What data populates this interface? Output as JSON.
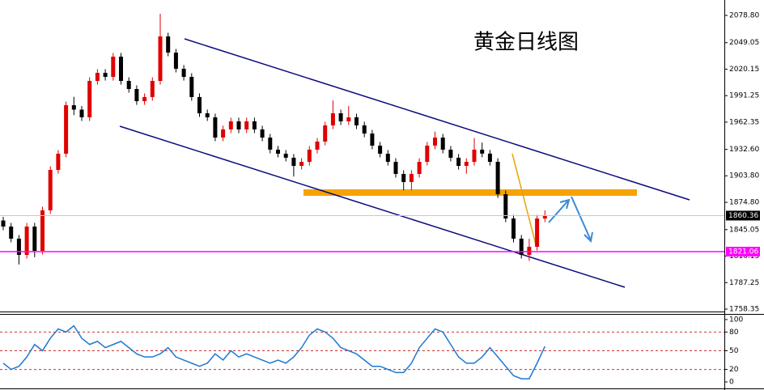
{
  "chart_data": [
    {
      "type": "candlestick",
      "title": "黄金日线图",
      "open": [
        1855.0,
        1848.4,
        1835.2,
        1817.5,
        1848.4,
        1821.9,
        1866.1,
        1910.2,
        1927.9,
        1980.8,
        1976.0,
        1967.6,
        2007.3,
        2016.1,
        2011.7,
        2033.8,
        2007.3,
        1998.5,
        1985.2,
        1989.7,
        2007.3,
        2055.9,
        2038.2,
        2020.6,
        2011.7,
        1989.7,
        1972.0,
        1967.6,
        1945.5,
        1954.4,
        1963.2,
        1954.4,
        1963.2,
        1954.4,
        1945.5,
        1932.3,
        1927.9,
        1923.5,
        1914.6,
        1919.0,
        1932.3,
        1941.1,
        1958.8,
        1972.0,
        1963.2,
        1967.6,
        1958.8,
        1949.9,
        1936.7,
        1927.9,
        1919.0,
        1905.8,
        1897.0,
        1905.8,
        1919.0,
        1936.7,
        1945.5,
        1932.3,
        1923.5,
        1914.6,
        1919.0,
        1932.3,
        1928.0,
        1919.0,
        1883.7,
        1857.2,
        1835.2,
        1817.5,
        1826.3,
        1857.2
      ],
      "high": [
        1859.0,
        1852.4,
        1839.2,
        1852.4,
        1852.4,
        1870.1,
        1914.2,
        1931.9,
        1984.8,
        1990.0,
        1980.0,
        2011.3,
        2020.1,
        2020.1,
        2037.8,
        2037.8,
        2011.3,
        2002.5,
        1993.7,
        2011.3,
        2080.6,
        2059.9,
        2042.2,
        2024.6,
        2015.7,
        1993.7,
        1976.0,
        1971.6,
        1958.4,
        1967.2,
        1967.2,
        1967.2,
        1967.2,
        1958.4,
        1949.5,
        1936.3,
        1931.9,
        1927.5,
        1923.0,
        1936.3,
        1945.1,
        1962.8,
        1986.0,
        1976.0,
        1980.0,
        1971.6,
        1962.8,
        1953.9,
        1940.7,
        1931.9,
        1923.0,
        1909.8,
        1909.8,
        1923.0,
        1940.7,
        1952.0,
        1949.5,
        1936.3,
        1927.5,
        1923.0,
        1945.0,
        1940.0,
        1932.0,
        1923.0,
        1887.7,
        1861.2,
        1839.2,
        1835.0,
        1861.2,
        1866.0
      ],
      "low": [
        1844.4,
        1831.2,
        1807.0,
        1813.5,
        1815.0,
        1817.9,
        1862.1,
        1906.2,
        1923.9,
        1970.0,
        1963.6,
        1963.6,
        2003.3,
        2007.7,
        2007.7,
        2003.3,
        1994.5,
        1981.2,
        1981.2,
        1985.7,
        2003.3,
        2034.2,
        2016.6,
        2007.7,
        1985.7,
        1968.0,
        1963.6,
        1941.5,
        1941.5,
        1950.4,
        1950.4,
        1950.4,
        1950.4,
        1941.5,
        1928.3,
        1923.9,
        1919.5,
        1903.0,
        1910.6,
        1915.0,
        1928.3,
        1937.1,
        1954.8,
        1959.2,
        1959.2,
        1954.8,
        1945.9,
        1932.7,
        1923.9,
        1915.0,
        1901.8,
        1888.0,
        1888.0,
        1901.8,
        1915.0,
        1932.7,
        1928.3,
        1919.5,
        1910.6,
        1906.0,
        1915.0,
        1924.0,
        1915.0,
        1879.7,
        1853.2,
        1831.2,
        1813.5,
        1811.0,
        1822.3,
        1853.2
      ],
      "close": [
        1848.4,
        1835.2,
        1817.5,
        1848.4,
        1821.9,
        1866.1,
        1910.2,
        1927.9,
        1980.8,
        1976.0,
        1967.6,
        2007.3,
        2016.1,
        2011.7,
        2033.8,
        2007.3,
        1998.5,
        1985.2,
        1989.7,
        2007.3,
        2055.9,
        2038.2,
        2020.6,
        2011.7,
        1989.7,
        1972.0,
        1967.6,
        1945.5,
        1954.4,
        1963.2,
        1954.4,
        1963.2,
        1954.4,
        1945.5,
        1932.3,
        1927.9,
        1923.5,
        1914.6,
        1919.0,
        1932.3,
        1941.1,
        1958.8,
        1972.0,
        1963.2,
        1967.6,
        1958.8,
        1949.9,
        1936.7,
        1927.9,
        1919.0,
        1905.8,
        1897.0,
        1905.8,
        1919.0,
        1936.7,
        1945.5,
        1932.3,
        1923.5,
        1914.6,
        1919.0,
        1932.3,
        1928.0,
        1919.0,
        1883.7,
        1857.2,
        1835.2,
        1817.5,
        1826.3,
        1857.2,
        1860.4
      ],
      "up_color": "#e00000",
      "down_color": "#000000",
      "ylim": [
        1755.7,
        2095.6
      ],
      "yticks": [
        {
          "value": 2078.8,
          "label": "2078.80"
        },
        2049.05,
        2020.15,
        1991.25,
        1962.35,
        {
          "value": 1932.6,
          "label": "1932.60"
        },
        {
          "value": 1903.8,
          "label": "1903.80"
        },
        {
          "value": 1874.8,
          "label": "1874.80"
        },
        1845.05,
        1816.15,
        1787.25,
        1758.35
      ],
      "current_price": 1860.36,
      "support_line": {
        "value": 1821.06,
        "color": "#ff00ff"
      }
    },
    {
      "type": "line",
      "values": [
        30,
        20,
        25,
        40,
        60,
        50,
        70,
        85,
        80,
        90,
        70,
        60,
        65,
        55,
        60,
        65,
        55,
        45,
        40,
        40,
        45,
        55,
        40,
        35,
        30,
        25,
        30,
        45,
        35,
        50,
        40,
        45,
        40,
        35,
        30,
        35,
        30,
        40,
        55,
        75,
        85,
        80,
        70,
        55,
        50,
        45,
        35,
        25,
        25,
        20,
        15,
        15,
        30,
        55,
        70,
        85,
        80,
        60,
        40,
        30,
        30,
        40,
        55,
        40,
        25,
        10,
        5,
        5,
        30,
        57
      ],
      "color": "#1e78d0",
      "ylim": [
        -10.4,
        109
      ],
      "yticks": [
        100,
        80,
        50,
        20,
        0
      ],
      "levels": [
        80,
        50,
        20
      ],
      "level_color": "#d03030"
    }
  ]
}
